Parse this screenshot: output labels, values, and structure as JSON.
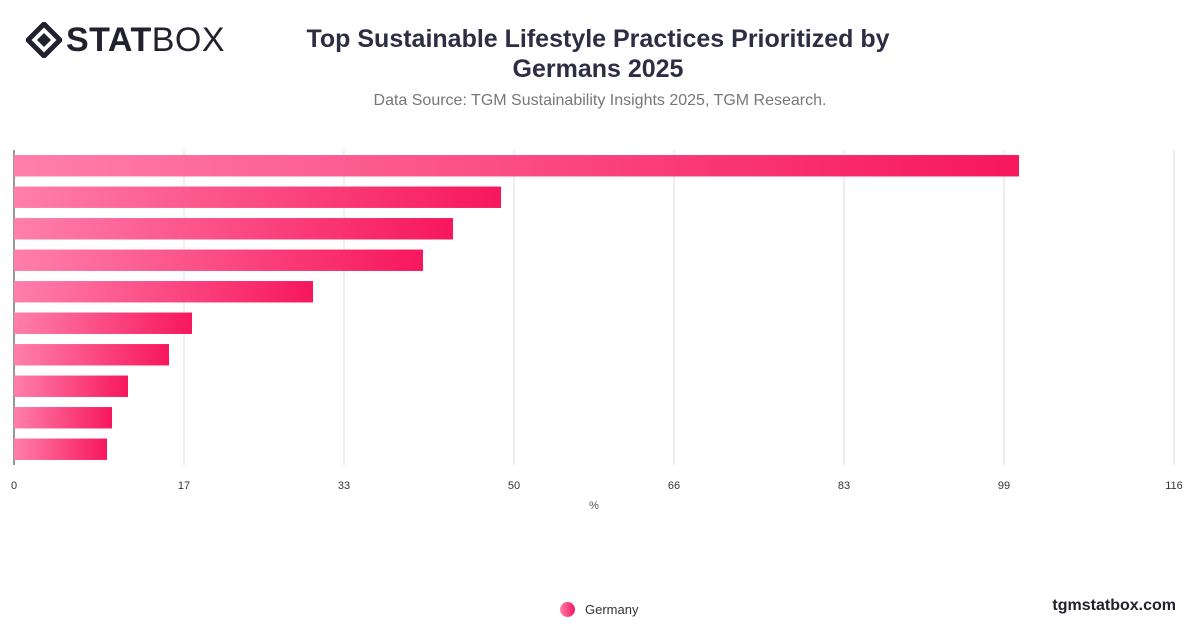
{
  "header": {
    "logo_bold": "STAT",
    "logo_light": "BOX",
    "title": "Top Sustainable Lifestyle Practices Prioritized by Germans 2025",
    "subtitle": "Data Source: TGM Sustainability Insights 2025, TGM Research."
  },
  "chart_data": {
    "type": "bar",
    "orientation": "horizontal",
    "categories": [
      "",
      "",
      "",
      "",
      "",
      "",
      "",
      "",
      "",
      ""
    ],
    "series": [
      {
        "name": "Germany",
        "values": [
          100.5,
          48.7,
          43.9,
          40.9,
          29.9,
          17.8,
          15.5,
          11.4,
          9.8,
          9.3
        ]
      }
    ],
    "xlabel": "%",
    "ylabel": "",
    "xlim": [
      0,
      116
    ],
    "xticks": [
      0,
      17,
      33,
      50,
      66,
      83,
      99,
      116
    ],
    "grid": true,
    "legend_position": "bottom",
    "colors": {
      "bar_start": "#ff7fab",
      "bar_end": "#f7175e",
      "grid": "#dddddd",
      "axis": "#333333"
    }
  },
  "footer": {
    "legend_label": "Germany",
    "brand_url": "tgmstatbox.com"
  }
}
